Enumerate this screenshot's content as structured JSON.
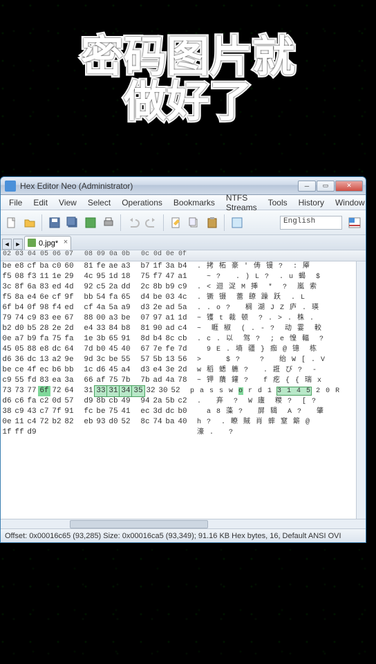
{
  "overlay": {
    "line1": "密码图片就",
    "line2": "做好了"
  },
  "window": {
    "title": "Hex Editor Neo (Administrator)",
    "menus": [
      "File",
      "Edit",
      "View",
      "Select",
      "Operations",
      "Bookmarks",
      "NTFS Streams",
      "Tools",
      "History",
      "Window"
    ],
    "lang": "English",
    "tab": "0.jpg*",
    "status": "Offset: 0x00016c65 (93,285)   Size: 0x00016ca5 (93,349); 91.16 KB   Hex bytes, 16, Default ANSI   OVI"
  },
  "hex": {
    "header": [
      "02",
      "03",
      "04",
      "05",
      "06",
      "07",
      "",
      "08",
      "09",
      "0a",
      "0b",
      "",
      "0c",
      "0d",
      "0e",
      "0f"
    ],
    "rows": [
      {
        "b": [
          "be",
          "e8",
          "cf",
          "ba",
          "c0",
          "60",
          "",
          "81",
          "fe",
          "ae",
          "a3",
          "",
          "b7",
          "1f",
          "3a",
          "b4"
        ],
        "a": ". 拷 柘 豪 ' 俦 镘 ?  : 厣"
      },
      {
        "b": [
          "f5",
          "08",
          "f3",
          "11",
          "1e",
          "29",
          "",
          "4c",
          "95",
          "1d",
          "18",
          "",
          "75",
          "f7",
          "47",
          "a1"
        ],
        "a": "  ~ ?   . ) L ?  . u 蝎  $"
      },
      {
        "b": [
          "3c",
          "8f",
          "6a",
          "83",
          "ed",
          "4d",
          "",
          "92",
          "c5",
          "2a",
          "dd",
          "",
          "2c",
          "8b",
          "b9",
          "c9"
        ],
        "a": ". < 迴 浞 M 挿  *  ?  嵐 索"
      },
      {
        "b": [
          "f5",
          "8a",
          "e4",
          "6e",
          "cf",
          "9f",
          "",
          "bb",
          "54",
          "fa",
          "65",
          "",
          "d4",
          "be",
          "03",
          "4c"
        ],
        "a": ". 镢 镊  蕾 镽 躁 跃  . L"
      },
      {
        "b": [
          "6f",
          "b4",
          "0f",
          "98",
          "f4",
          "ed",
          "",
          "cf",
          "4a",
          "5a",
          "a9",
          "",
          "d3",
          "2e",
          "ad",
          "5a"
        ],
        "a": ". . o ?   榈 湖 J Z 庐 . 瑛"
      },
      {
        "b": [
          "79",
          "74",
          "c9",
          "83",
          "ee",
          "67",
          "",
          "88",
          "00",
          "a3",
          "be",
          "",
          "07",
          "97",
          "a1",
          "1d"
        ],
        "a": "~ 镬 t 裁 顿  ? . > . 株 ."
      },
      {
        "b": [
          "b2",
          "d0",
          "b5",
          "28",
          "2e",
          "2d",
          "",
          "e4",
          "33",
          "84",
          "b8",
          "",
          "81",
          "90",
          "ad",
          "c4"
        ],
        "a": "~  睚 椒  ( . - ?  动 霎  較"
      },
      {
        "b": [
          "0e",
          "a7",
          "b9",
          "fa",
          "75",
          "fa",
          "",
          "1e",
          "3b",
          "65",
          "91",
          "",
          "8d",
          "b4",
          "8c",
          "cb"
        ],
        "a": ". c . 以  驾 ?  ; e 惶 輻  ?"
      },
      {
        "b": [
          "45",
          "05",
          "88",
          "e8",
          "dc",
          "64",
          "",
          "7d",
          "b0",
          "45",
          "40",
          "",
          "67",
          "7e",
          "fe",
          "7d"
        ],
        "a": "  9 E . 墒 疆 } 痂 @ 镱  栋"
      },
      {
        "b": [
          "d6",
          "36",
          "dc",
          "13",
          "a2",
          "9e",
          "",
          "9d",
          "3c",
          "be",
          "55",
          "",
          "57",
          "5b",
          "13",
          "56"
        ],
        "a": ">     $ ?    ?   绐 W [ . V"
      },
      {
        "b": [
          "be",
          "ce",
          "4f",
          "ec",
          "b6",
          "bb",
          "",
          "1c",
          "d6",
          "45",
          "a4",
          "",
          "d3",
          "e4",
          "3e",
          "2d"
        ],
        "a": "w 稻 蟋 軈 ?   . 誑 び ?  -"
      },
      {
        "b": [
          "c9",
          "55",
          "fd",
          "83",
          "ea",
          "3a",
          "",
          "66",
          "af",
          "75",
          "7b",
          "",
          "7b",
          "ad",
          "4a",
          "78"
        ],
        "a": "~ 钾 藬 鑵 ?   f 疙 { { 瑞 x"
      },
      {
        "b": [
          "73",
          "73",
          "77",
          "6f",
          "72",
          "64",
          "",
          "31",
          "33",
          "31",
          "34",
          "35",
          "32",
          "30",
          "52"
        ],
        "a": "p a s s w o r d 1 3 1 4 5 2 0 R",
        "hl": true
      },
      {
        "b": [
          "d6",
          "c6",
          "fa",
          "c2",
          "0d",
          "57",
          "",
          "d9",
          "8b",
          "cb",
          "49",
          "",
          "94",
          "2a",
          "5b",
          "c2"
        ],
        "a": ".   弃  ?  W 廬  糉 ?  [ ?"
      },
      {
        "b": [
          "38",
          "c9",
          "43",
          "c7",
          "7f",
          "91",
          "",
          "fc",
          "be",
          "75",
          "41",
          "",
          "ec",
          "3d",
          "dc",
          "b0"
        ],
        "a": "  a 8 藻 ?   屏 辑  A ?   肇"
      },
      {
        "b": [
          "0e",
          "11",
          "c4",
          "72",
          "b2",
          "82",
          "",
          "eb",
          "93",
          "d0",
          "52",
          "",
          "8c",
          "74",
          "ba",
          "40"
        ],
        "a": "h ?  . 瞭 賊 肖 蟀 窒 簛 @"
      },
      {
        "b": [
          "1f",
          "ff",
          "d9",
          "  ",
          "  ",
          "  ",
          "",
          "  ",
          "  ",
          "  ",
          "  ",
          "",
          "  ",
          "  ",
          "  ",
          "  "
        ],
        "a": "濠 .   ?"
      }
    ]
  },
  "colors": {
    "title_grad_top": "#e8eef7",
    "title_grad_bot": "#cdd9e8",
    "close_red": "#d05045",
    "hl_green": "#7fd89a",
    "hl_box": "#b8e8c8"
  }
}
